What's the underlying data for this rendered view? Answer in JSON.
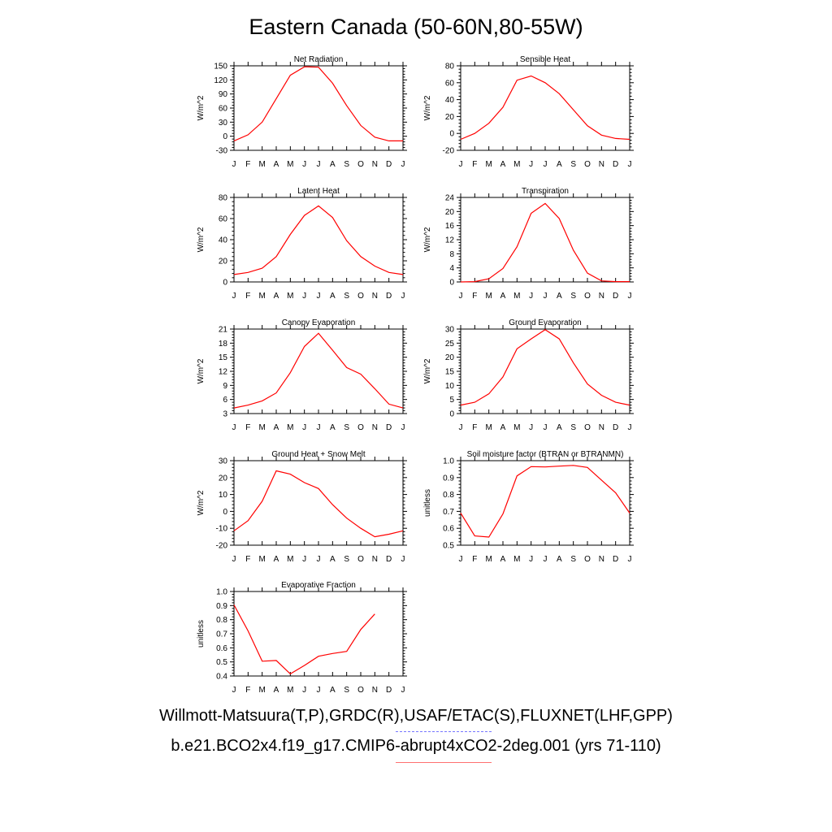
{
  "title": "Eastern Canada (50-60N,80-55W)",
  "legend": {
    "observations": "Willmott-Matsuura(T,P),GRDC(R),USAF/ETAC(S),FLUXNET(LHF,GPP)",
    "model": "b.e21.BCO2x4.f19_g17.CMIP6-abrupt4xCO2-2deg.001 (yrs 71-110)"
  },
  "colors": {
    "model": "#ff0000",
    "observations": "#7777ff"
  },
  "chart_data": [
    {
      "type": "line",
      "title": "Net Radiation",
      "ylabel": "W/m^2",
      "x": [
        "J",
        "F",
        "M",
        "A",
        "M",
        "J",
        "J",
        "A",
        "S",
        "O",
        "N",
        "D",
        "J"
      ],
      "ylim": [
        -30,
        150
      ],
      "yticks": [
        "-30",
        "0",
        "30",
        "60",
        "90",
        "120",
        "150"
      ],
      "series": [
        {
          "values": [
            -10,
            3,
            30,
            80,
            130,
            148,
            147,
            113,
            65,
            23,
            -2,
            -10,
            -10
          ]
        }
      ]
    },
    {
      "type": "line",
      "title": "Sensible Heat",
      "ylabel": "W/m^2",
      "x": [
        "J",
        "F",
        "M",
        "A",
        "M",
        "J",
        "J",
        "A",
        "S",
        "O",
        "N",
        "D",
        "J"
      ],
      "ylim": [
        -20,
        80
      ],
      "yticks": [
        "-20",
        "0",
        "20",
        "40",
        "60",
        "80"
      ],
      "series": [
        {
          "values": [
            -7,
            0,
            12,
            31,
            63,
            68,
            60,
            47,
            28,
            9,
            -2,
            -6,
            -7
          ]
        }
      ]
    },
    {
      "type": "line",
      "title": "Latent Heat",
      "ylabel": "W/m^2",
      "x": [
        "J",
        "F",
        "M",
        "A",
        "M",
        "J",
        "J",
        "A",
        "S",
        "O",
        "N",
        "D",
        "J"
      ],
      "ylim": [
        0,
        80
      ],
      "yticks": [
        "0",
        "20",
        "40",
        "60",
        "80"
      ],
      "series": [
        {
          "values": [
            7,
            9,
            13,
            24,
            45,
            63,
            72,
            61,
            39,
            24,
            15,
            9,
            7
          ]
        }
      ]
    },
    {
      "type": "line",
      "title": "Transpiration",
      "ylabel": "W/m^2",
      "x": [
        "J",
        "F",
        "M",
        "A",
        "M",
        "J",
        "J",
        "A",
        "S",
        "O",
        "N",
        "D",
        "J"
      ],
      "ylim": [
        0,
        24
      ],
      "yticks": [
        "0",
        "4",
        "8",
        "12",
        "16",
        "20",
        "24"
      ],
      "series": [
        {
          "values": [
            0,
            0.1,
            0.9,
            3.8,
            10,
            19.5,
            22.3,
            18,
            9,
            2.5,
            0.3,
            0.1,
            0.1
          ]
        }
      ]
    },
    {
      "type": "line",
      "title": "Canopy Evaporation",
      "ylabel": "W/m^2",
      "x": [
        "J",
        "F",
        "M",
        "A",
        "M",
        "J",
        "J",
        "A",
        "S",
        "O",
        "N",
        "D",
        "J"
      ],
      "ylim": [
        3,
        21
      ],
      "yticks": [
        "3",
        "6",
        "9",
        "12",
        "15",
        "18",
        "21"
      ],
      "series": [
        {
          "values": [
            4.2,
            4.8,
            5.7,
            7.4,
            11.7,
            17.3,
            20.1,
            16.5,
            12.8,
            11.4,
            8.3,
            5,
            4.2
          ]
        }
      ]
    },
    {
      "type": "line",
      "title": "Ground Evaporation",
      "ylabel": "W/m^2",
      "x": [
        "J",
        "F",
        "M",
        "A",
        "M",
        "J",
        "J",
        "A",
        "S",
        "O",
        "N",
        "D",
        "J"
      ],
      "ylim": [
        0,
        30
      ],
      "yticks": [
        "0",
        "5",
        "10",
        "15",
        "20",
        "25",
        "30"
      ],
      "series": [
        {
          "values": [
            3,
            4,
            7,
            13,
            23,
            26.5,
            29.8,
            26.5,
            18,
            10.5,
            6.5,
            4,
            3
          ]
        }
      ]
    },
    {
      "type": "line",
      "title": "Ground Heat + Snow Melt",
      "ylabel": "W/m^2",
      "x": [
        "J",
        "F",
        "M",
        "A",
        "M",
        "J",
        "J",
        "A",
        "S",
        "O",
        "N",
        "D",
        "J"
      ],
      "ylim": [
        -20,
        30
      ],
      "yticks": [
        "-20",
        "-10",
        "0",
        "10",
        "20",
        "30"
      ],
      "series": [
        {
          "values": [
            -11.5,
            -5.5,
            6,
            24,
            22,
            17,
            13.5,
            4,
            -4,
            -10,
            -15,
            -13.5,
            -11.5
          ]
        }
      ]
    },
    {
      "type": "line",
      "title": "Soil moisture factor (BTRAN or BTRANMN)",
      "ylabel": "unitless",
      "x": [
        "J",
        "F",
        "M",
        "A",
        "M",
        "J",
        "J",
        "A",
        "S",
        "O",
        "N",
        "D",
        "J"
      ],
      "ylim": [
        0.5,
        1.0
      ],
      "yticks": [
        "0.5",
        "0.6",
        "0.7",
        "0.8",
        "0.9",
        "1.0"
      ],
      "series": [
        {
          "values": [
            0.69,
            0.555,
            0.548,
            0.685,
            0.91,
            0.965,
            0.963,
            0.968,
            0.972,
            0.96,
            0.885,
            0.81,
            0.69
          ]
        }
      ]
    },
    {
      "type": "line",
      "title": "Evaporative Fraction",
      "ylabel": "unitless",
      "x": [
        "J",
        "F",
        "M",
        "A",
        "M",
        "J",
        "J",
        "A",
        "S",
        "O",
        "N",
        "D",
        "J"
      ],
      "ylim": [
        0.4,
        1.0
      ],
      "yticks": [
        "0.4",
        "0.5",
        "0.6",
        "0.7",
        "0.8",
        "0.9",
        "1.0"
      ],
      "series": [
        {
          "values": [
            0.905,
            0.72,
            0.505,
            0.51,
            0.415,
            0.475,
            0.54,
            0.56,
            0.575,
            0.73,
            0.84,
            null,
            null
          ]
        }
      ]
    }
  ]
}
